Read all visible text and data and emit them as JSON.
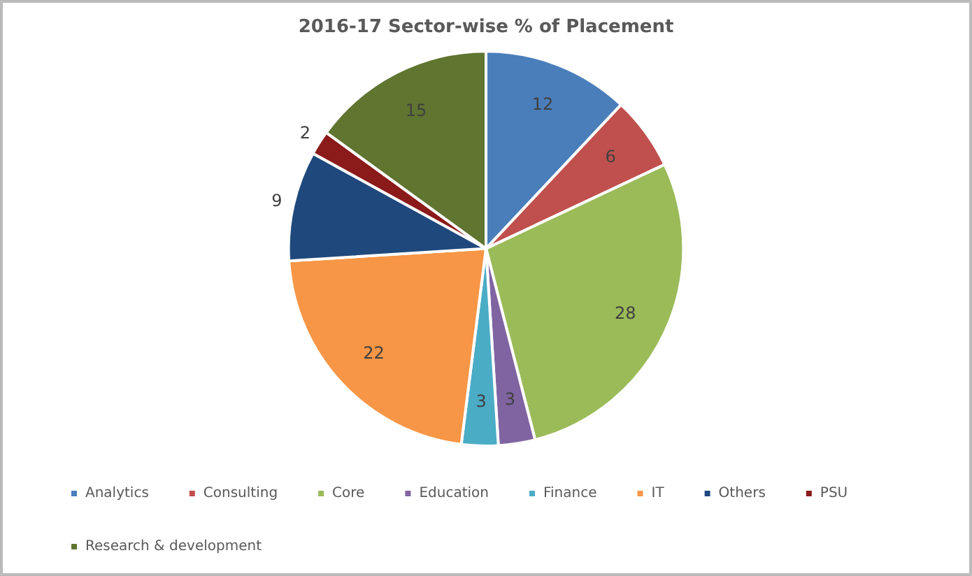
{
  "chart_data": {
    "type": "pie",
    "title": "2016-17 Sector-wise % of Placement",
    "categories": [
      "Analytics",
      "Consulting",
      "Core",
      "Education",
      "Finance",
      "IT",
      "Others",
      "PSU",
      "Research & development"
    ],
    "values": [
      12,
      6,
      28,
      3,
      3,
      22,
      9,
      2,
      15
    ],
    "colors": [
      "#4a7ebb",
      "#c0504d",
      "#9bbb59",
      "#8064a2",
      "#4bacc6",
      "#f79646",
      "#1f497d",
      "#8b1a1a",
      "#5f7530"
    ],
    "data_labels": true,
    "legend": "bottom"
  }
}
